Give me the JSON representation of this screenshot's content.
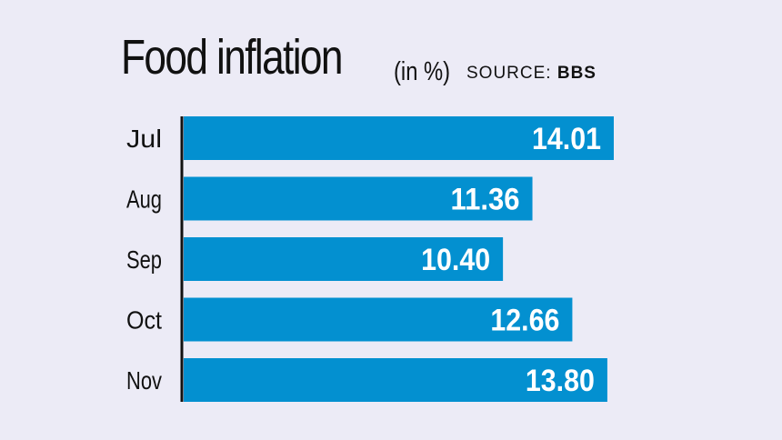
{
  "title": {
    "main": "Food inflation",
    "unit": "(in %)",
    "source_label": "SOURCE:",
    "source_name": "BBS"
  },
  "colors": {
    "bar": "#0390d0",
    "axis": "#111111",
    "background": "#ecebf6"
  },
  "chart_data": {
    "type": "bar",
    "orientation": "horizontal",
    "title": "Food inflation (in %)",
    "source": "SOURCE: BBS",
    "categories": [
      "Jul",
      "Aug",
      "Sep",
      "Oct",
      "Nov"
    ],
    "values": [
      14.01,
      11.36,
      10.4,
      12.66,
      13.8
    ],
    "value_labels": [
      "14.01",
      "11.36",
      "10.40",
      "12.66",
      "13.80"
    ],
    "xlabel": "",
    "ylabel": "",
    "xlim": [
      0,
      15
    ],
    "grid": false
  }
}
